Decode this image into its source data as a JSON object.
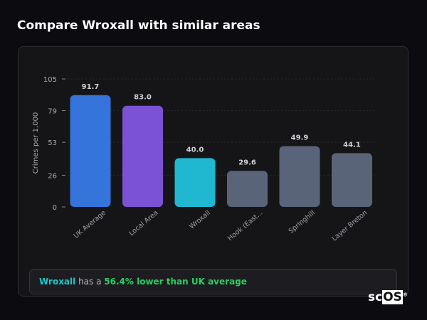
{
  "title": "Compare Wroxall with similar areas",
  "chart_data": {
    "type": "bar",
    "categories": [
      "UK Average",
      "Local Area",
      "Wroxall",
      "Hook (East...",
      "Springhill",
      "Layer Breton"
    ],
    "values": [
      91.7,
      83.0,
      40.0,
      29.6,
      49.9,
      44.1
    ],
    "data_labels": [
      "91.7",
      "83.0",
      "40.0",
      "29.6",
      "49.9",
      "44.1"
    ],
    "colors": [
      "#3474db",
      "#7b52d3",
      "#20b8d0",
      "#5a6478",
      "#5a6478",
      "#5a6478"
    ],
    "ylabel": "Crimes per 1,000",
    "yticks": [
      0,
      26,
      53,
      79,
      105
    ],
    "ylim": [
      0,
      105
    ],
    "grid": true,
    "legend": "none"
  },
  "summary": {
    "place": "Wroxall",
    "text1": " has a ",
    "highlight": "56.4% lower than UK average"
  },
  "logo": {
    "text_a": "sc",
    "text_b": "OS",
    "mark": "®"
  }
}
